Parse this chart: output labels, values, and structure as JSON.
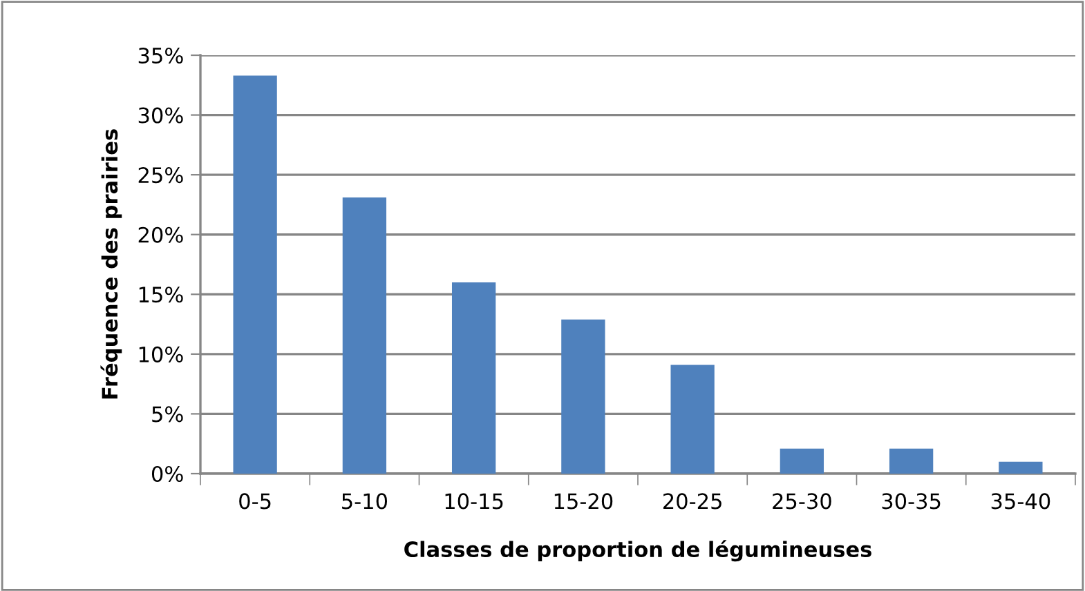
{
  "chart_data": {
    "type": "bar",
    "xlabel": "Classes de proportion de légumineuses",
    "ylabel": "Fréquence des prairies",
    "categories": [
      "0-5",
      "5-10",
      "10-15",
      "15-20",
      "20-25",
      "25-30",
      "30-35",
      "35-40"
    ],
    "values": [
      33.3,
      23.1,
      16.0,
      12.9,
      9.1,
      2.1,
      2.1,
      1.0
    ],
    "color": "#4f81bd",
    "ylim": [
      0,
      35
    ],
    "yticks": [
      {
        "value": 0,
        "label": "0%"
      },
      {
        "value": 5,
        "label": "5%"
      },
      {
        "value": 10,
        "label": "10%"
      },
      {
        "value": 15,
        "label": "15%"
      },
      {
        "value": 20,
        "label": "20%"
      },
      {
        "value": 25,
        "label": "25%"
      },
      {
        "value": 30,
        "label": "30%"
      },
      {
        "value": 35,
        "label": "35%"
      }
    ],
    "grid": "y",
    "legend": false
  }
}
